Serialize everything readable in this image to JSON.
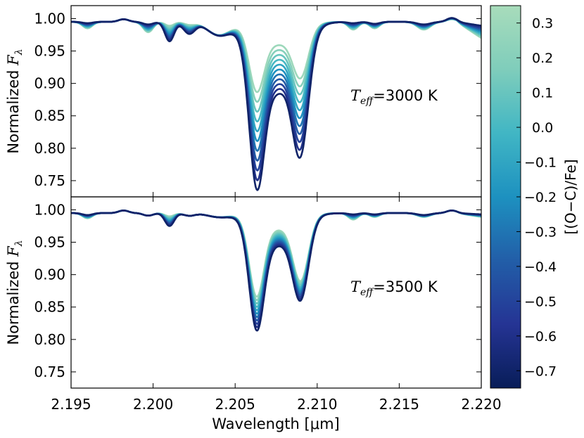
{
  "chart_data": [
    {
      "type": "line",
      "panel": "top",
      "annotation": {
        "symbol": "T",
        "subscript": "eff",
        "value_text": "=3000 K"
      },
      "ylabel": {
        "text": "Normalized ",
        "symbol": "F",
        "subscript": "λ"
      },
      "xlim": [
        2.195,
        2.22
      ],
      "ylim": [
        0.725,
        1.02
      ],
      "yticks": [
        "0.75",
        "0.80",
        "0.85",
        "0.90",
        "0.95",
        "1.00"
      ],
      "series_color_values": [
        0.3,
        0.2,
        0.1,
        0.0,
        -0.1,
        -0.2,
        -0.3,
        -0.4,
        -0.5,
        -0.6,
        -0.7
      ],
      "min_depth_line1": {
        "oc_0.3": 0.887,
        "oc_-0.7": 0.737
      },
      "min_depth_line2": {
        "oc_0.3": 0.908,
        "oc_-0.7": 0.787
      },
      "peak_between_lines": {
        "oc_0.3": 0.962,
        "oc_-0.7": 0.889
      }
    },
    {
      "type": "line",
      "panel": "bottom",
      "annotation": {
        "symbol": "T",
        "subscript": "eff",
        "value_text": "=3500 K"
      },
      "ylabel": {
        "text": "Normalized ",
        "symbol": "F",
        "subscript": "λ"
      },
      "xlabel": "Wavelength [μm]",
      "xlim": [
        2.195,
        2.22
      ],
      "ylim": [
        0.725,
        1.02
      ],
      "xticks": [
        "2.195",
        "2.200",
        "2.205",
        "2.210",
        "2.215",
        "2.220"
      ],
      "yticks": [
        "0.75",
        "0.80",
        "0.85",
        "0.90",
        "0.95",
        "1.00"
      ],
      "series_color_values": [
        0.3,
        0.2,
        0.1,
        0.0,
        -0.1,
        -0.2,
        -0.3,
        -0.4,
        -0.5,
        -0.6,
        -0.7
      ],
      "min_depth_line1": {
        "oc_0.3": 0.866,
        "oc_-0.7": 0.814
      },
      "min_depth_line2": {
        "oc_0.3": 0.89,
        "oc_-0.7": 0.86
      },
      "peak_between_lines": {
        "oc_0.3": 0.972,
        "oc_-0.7": 0.948
      }
    }
  ],
  "colorbar": {
    "label": "[(O−C)/Fe]",
    "range": [
      -0.75,
      0.35
    ],
    "ticks": [
      "0.3",
      "0.2",
      "0.1",
      "0.0",
      "−0.1",
      "−0.2",
      "−0.3",
      "−0.4",
      "−0.5",
      "−0.6",
      "−0.7"
    ],
    "tick_values": [
      0.3,
      0.2,
      0.1,
      0.0,
      -0.1,
      -0.2,
      -0.3,
      -0.4,
      -0.5,
      -0.6,
      -0.7
    ],
    "colormap": [
      "#081d58",
      "#253494",
      "#225ea8",
      "#1d91c0",
      "#41b6c4",
      "#7fcdbb",
      "#a8dcbb"
    ]
  }
}
